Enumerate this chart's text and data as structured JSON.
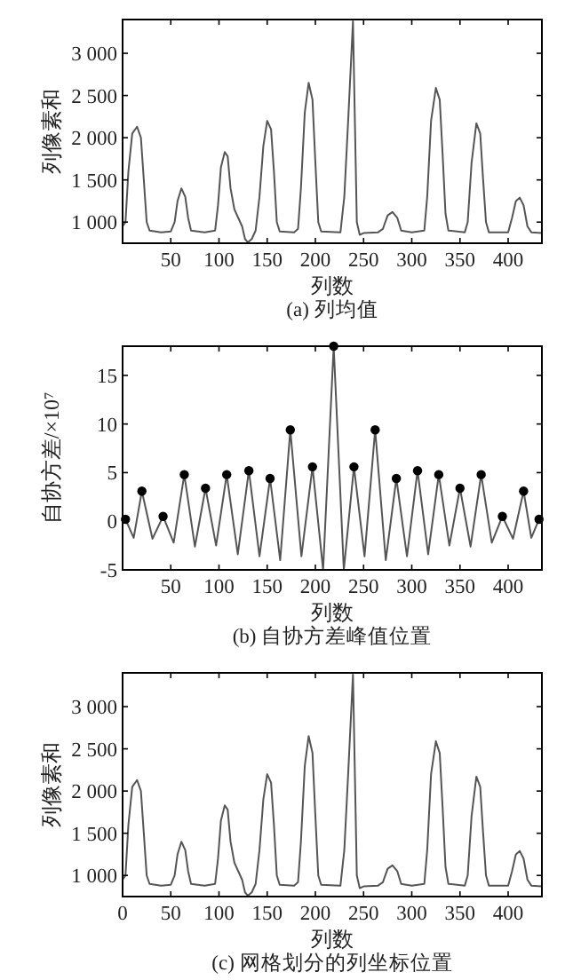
{
  "chart_data": [
    {
      "type": "line",
      "title": "(a) 列均值",
      "xlabel": "列数",
      "ylabel": "列像素和",
      "xlim": [
        0,
        435
      ],
      "ylim": [
        750,
        3400
      ],
      "xticks": [
        50,
        100,
        150,
        200,
        250,
        300,
        350,
        400
      ],
      "yticks": [
        {
          "value": 1000,
          "label": "1 000"
        },
        {
          "value": 1500,
          "label": "1 500"
        },
        {
          "value": 2000,
          "label": "2 000"
        },
        {
          "value": 2500,
          "label": "2 500"
        },
        {
          "value": 3000,
          "label": "3 000"
        }
      ],
      "series": [
        {
          "type": "line",
          "color": "#555555",
          "x": [
            0,
            3,
            6,
            10,
            15,
            19,
            22,
            25,
            28,
            40,
            50,
            54,
            57,
            61,
            65,
            68,
            71,
            85,
            96,
            99,
            102,
            106,
            109,
            112,
            116,
            120,
            124,
            127,
            130,
            134,
            138,
            142,
            146,
            150,
            154,
            157,
            160,
            163,
            178,
            182,
            185,
            189,
            193,
            197,
            200,
            203,
            206,
            226,
            230,
            234,
            239,
            243,
            246,
            250,
            265,
            270,
            275,
            280,
            285,
            289,
            300,
            313,
            316,
            320,
            325,
            329,
            332,
            335,
            338,
            355,
            358,
            362,
            367,
            371,
            374,
            377,
            380,
            400,
            404,
            408,
            412,
            416,
            420,
            424,
            435
          ],
          "values": [
            950,
            1000,
            1600,
            2050,
            2130,
            2000,
            1500,
            1000,
            900,
            880,
            890,
            1000,
            1250,
            1400,
            1300,
            1050,
            900,
            880,
            900,
            1200,
            1650,
            1830,
            1780,
            1400,
            1150,
            1050,
            950,
            800,
            760,
            800,
            900,
            1300,
            1900,
            2200,
            2100,
            1600,
            1000,
            890,
            880,
            920,
            1400,
            2300,
            2650,
            2450,
            1700,
            1000,
            890,
            880,
            1300,
            2200,
            3380,
            1000,
            850,
            870,
            880,
            920,
            1080,
            1120,
            1050,
            900,
            880,
            900,
            1300,
            2200,
            2590,
            2450,
            1800,
            1100,
            900,
            880,
            1000,
            1700,
            2170,
            2050,
            1500,
            1000,
            880,
            880,
            1050,
            1250,
            1290,
            1200,
            950,
            880,
            870
          ]
        }
      ]
    },
    {
      "type": "line",
      "title": "(b) 自协方差峰值位置",
      "xlabel": "列数",
      "ylabel": "自协方差/×10⁷",
      "xlim": [
        0,
        435
      ],
      "ylim": [
        -5,
        18
      ],
      "xticks": [
        50,
        100,
        150,
        200,
        250,
        300,
        350,
        400
      ],
      "yticks": [
        -5,
        0,
        5,
        10,
        15
      ],
      "series": [
        {
          "type": "line",
          "color": "#555555",
          "x": [
            3,
            11.5,
            20,
            31,
            42,
            53,
            64,
            75,
            86,
            97,
            108,
            119.5,
            131,
            142,
            153,
            163.5,
            174,
            185.5,
            197,
            208,
            219,
            229.5,
            240,
            251,
            262,
            273,
            284,
            295,
            306,
            317,
            328,
            339,
            350,
            361,
            372,
            383,
            394,
            405,
            416,
            424,
            432
          ],
          "values": [
            0.2,
            -1.7,
            3.1,
            -1.8,
            0.5,
            -2.2,
            4.8,
            -2.6,
            3.4,
            -2.5,
            4.8,
            -3.4,
            5.2,
            -3.6,
            4.4,
            -4.0,
            9.4,
            -3.6,
            5.6,
            -5,
            18,
            -5,
            5.6,
            -3.6,
            9.4,
            -4.0,
            4.4,
            -3.6,
            5.2,
            -3.4,
            4.8,
            -2.5,
            3.4,
            -2.6,
            4.8,
            -2.2,
            0.5,
            -1.8,
            3.1,
            -1.7,
            0.2
          ]
        },
        {
          "type": "scatter",
          "color": "#000000",
          "marker": "circle",
          "x": [
            3,
            20,
            42,
            64,
            86,
            108,
            131,
            153,
            174,
            197,
            219,
            240,
            262,
            284,
            306,
            328,
            350,
            372,
            394,
            416,
            432
          ],
          "values": [
            0.2,
            3.1,
            0.5,
            4.8,
            3.4,
            4.8,
            5.2,
            4.4,
            9.4,
            5.6,
            18,
            5.6,
            9.4,
            4.4,
            5.2,
            4.8,
            3.4,
            4.8,
            0.5,
            3.1,
            0.2
          ]
        }
      ]
    },
    {
      "type": "line",
      "title": "(c) 网格划分的列坐标位置",
      "xlabel": "列数",
      "ylabel": "列像素和",
      "xlim": [
        0,
        435
      ],
      "ylim": [
        750,
        3400
      ],
      "xticks": [
        0,
        50,
        100,
        150,
        200,
        250,
        300,
        350,
        400
      ],
      "yticks": [
        {
          "value": 1000,
          "label": "1 000"
        },
        {
          "value": 1500,
          "label": "1 500"
        },
        {
          "value": 2000,
          "label": "2 000"
        },
        {
          "value": 2500,
          "label": "2 500"
        },
        {
          "value": 3000,
          "label": "3 000"
        }
      ],
      "series": [
        {
          "type": "line",
          "color": "#555555",
          "x": [
            0,
            3,
            6,
            10,
            15,
            19,
            22,
            25,
            28,
            40,
            50,
            54,
            57,
            61,
            65,
            68,
            71,
            85,
            96,
            99,
            102,
            106,
            109,
            112,
            116,
            120,
            124,
            127,
            130,
            134,
            138,
            142,
            146,
            150,
            154,
            157,
            160,
            163,
            178,
            182,
            185,
            189,
            193,
            197,
            200,
            203,
            206,
            226,
            230,
            234,
            239,
            243,
            246,
            250,
            265,
            270,
            275,
            280,
            285,
            289,
            300,
            313,
            316,
            320,
            325,
            329,
            332,
            335,
            338,
            355,
            358,
            362,
            367,
            371,
            374,
            377,
            380,
            400,
            404,
            408,
            412,
            416,
            420,
            424,
            435
          ],
          "values": [
            950,
            1000,
            1600,
            2050,
            2130,
            2000,
            1500,
            1000,
            900,
            880,
            890,
            1000,
            1250,
            1400,
            1300,
            1050,
            900,
            880,
            900,
            1200,
            1650,
            1830,
            1780,
            1400,
            1150,
            1050,
            950,
            800,
            760,
            800,
            900,
            1300,
            1900,
            2200,
            2100,
            1600,
            1000,
            890,
            880,
            920,
            1400,
            2300,
            2650,
            2450,
            1700,
            1000,
            890,
            880,
            1300,
            2200,
            3380,
            1000,
            850,
            870,
            880,
            920,
            1080,
            1120,
            1050,
            900,
            880,
            900,
            1300,
            2200,
            2590,
            2450,
            1800,
            1100,
            900,
            880,
            1000,
            1700,
            2170,
            2050,
            1500,
            1000,
            880,
            880,
            1050,
            1250,
            1290,
            1200,
            950,
            880,
            870
          ]
        }
      ]
    }
  ]
}
